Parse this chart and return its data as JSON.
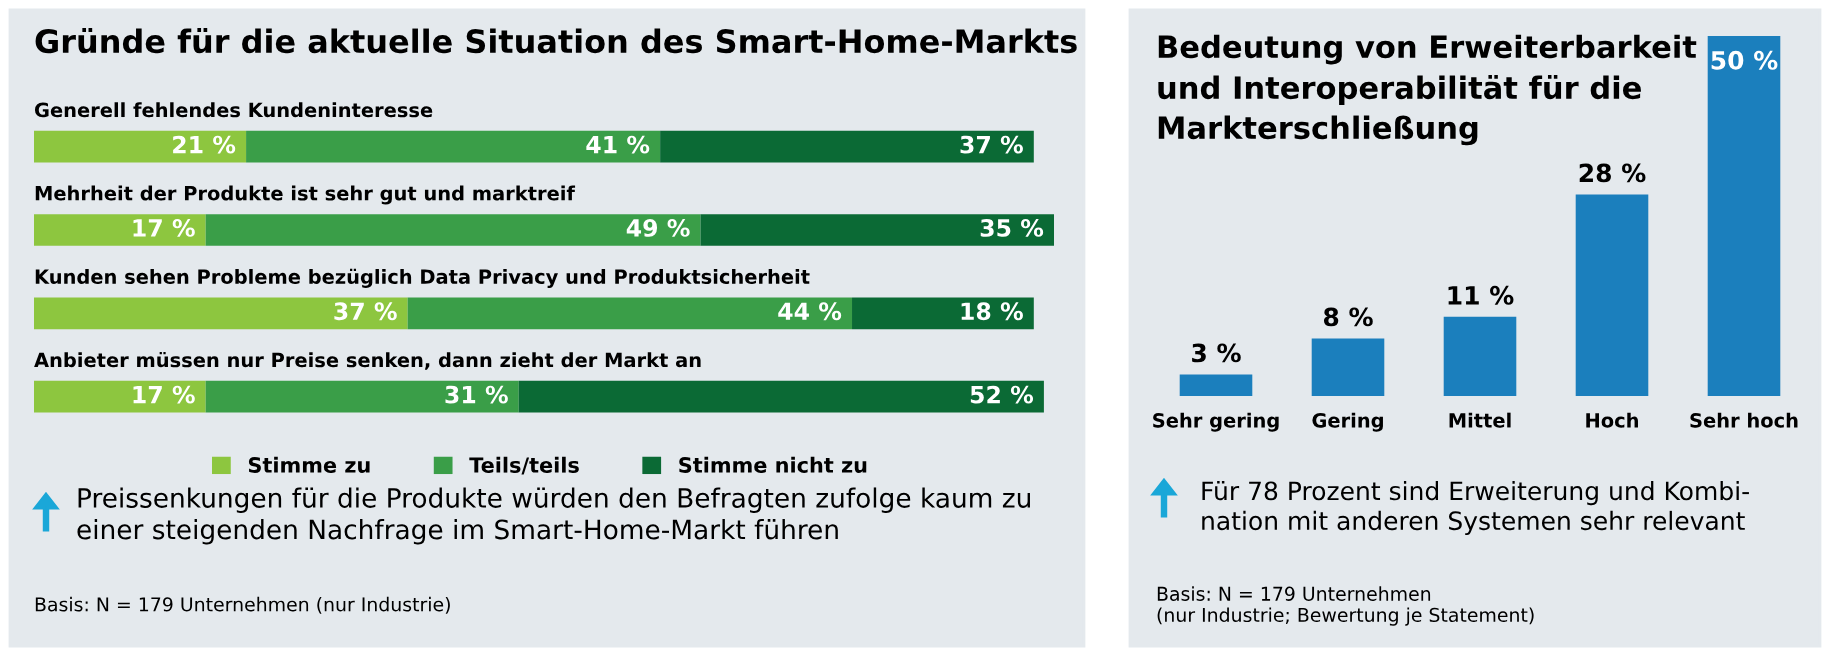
{
  "chart_data": [
    {
      "type": "bar",
      "orientation": "horizontal",
      "stacked": true,
      "title": "Gründe für die aktuelle Situation des Smart-Home-Markts",
      "categories": [
        "Generell fehlendes Kundeninteresse",
        "Mehrheit der Produkte ist sehr gut und marktreif",
        "Kunden sehen Probleme bezüglich Data Privacy und Produktsicherheit",
        "Anbieter müssen nur Preise senken, dann zieht der Markt an"
      ],
      "series": [
        {
          "name": "Stimme zu",
          "color": "#8dc63f",
          "values": [
            21,
            17,
            37,
            17
          ],
          "value_labels": [
            "21 %",
            "17 %",
            "37 %",
            "17 %"
          ]
        },
        {
          "name": "Teils/teils",
          "color": "#3a9e48",
          "values": [
            41,
            49,
            44,
            31
          ],
          "value_labels": [
            "41 %",
            "49 %",
            "44 %",
            "31 %"
          ]
        },
        {
          "name": "Stimme nicht zu",
          "color": "#0b6a35",
          "values": [
            37,
            35,
            18,
            52
          ],
          "value_labels": [
            "37 %",
            "35 %",
            "18 %",
            "52 %"
          ]
        }
      ],
      "legend": "bottom",
      "annotations": [
        "Preissenkungen für die Produkte würden den Befragten zufolge kaum zu\neiner steigenden Nachfrage im Smart-Home-Markt führen",
        "Basis: N = 179 Unternehmen (nur Industrie)"
      ]
    },
    {
      "type": "bar",
      "title": "Bedeutung von Erweiterbarkeit\nund Interoperabilität für die\nMarkterschließung",
      "categories": [
        "Sehr gering",
        "Gering",
        "Mittel",
        "Hoch",
        "Sehr hoch"
      ],
      "values": [
        3,
        8,
        11,
        28,
        50
      ],
      "value_labels": [
        "3 %",
        "8 %",
        "11 %",
        "28 %",
        "50 %"
      ],
      "color": "#1b7fbd",
      "annotations": [
        "Für 78 Prozent sind Erweiterung und Kombi-\nnation mit anderen Systemen sehr relevant",
        "Basis: N = 179 Unternehmen\n(nur Industrie; Bewertung je Statement)"
      ]
    }
  ]
}
